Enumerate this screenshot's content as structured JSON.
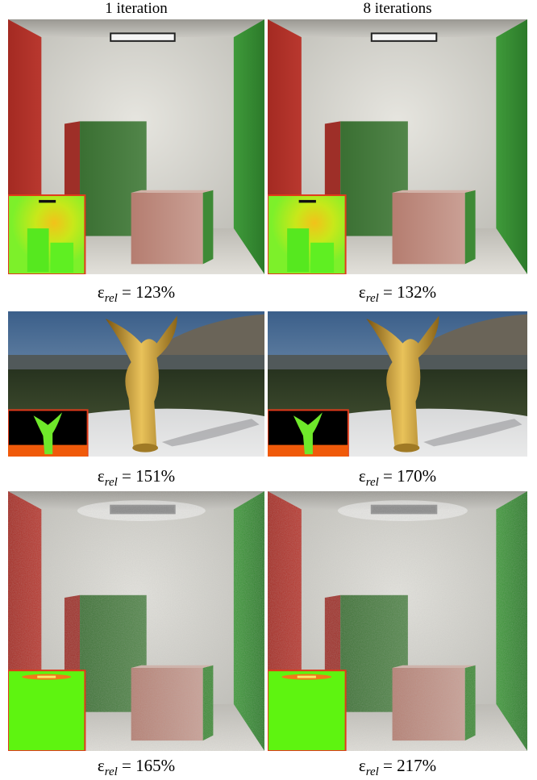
{
  "columns": [
    {
      "label": "1 iteration"
    },
    {
      "label": "8 iterations"
    }
  ],
  "rows": [
    {
      "scene": "cornell-box",
      "noise": false,
      "inset": "heatmap",
      "cells": [
        {
          "error_symbol": "ε",
          "error_subscript": "rel",
          "error_text": "= 123%",
          "error_value": 123
        },
        {
          "error_symbol": "ε",
          "error_subscript": "rel",
          "error_text": "= 132%",
          "error_value": 132
        }
      ]
    },
    {
      "scene": "angel-statue",
      "noise": false,
      "inset": "angel",
      "cells": [
        {
          "error_symbol": "ε",
          "error_subscript": "rel",
          "error_text": "= 151%",
          "error_value": 151
        },
        {
          "error_symbol": "ε",
          "error_subscript": "rel",
          "error_text": "= 170%",
          "error_value": 170
        }
      ]
    },
    {
      "scene": "cornell-box",
      "noise": true,
      "inset": "flat",
      "cells": [
        {
          "error_symbol": "ε",
          "error_subscript": "rel",
          "error_text": "= 165%",
          "error_value": 165
        },
        {
          "error_symbol": "ε",
          "error_subscript": "rel",
          "error_text": "= 217%",
          "error_value": 217
        }
      ]
    }
  ],
  "colors": {
    "wall_red": "#b9382f",
    "wall_green": "#3f9a3a",
    "wall_back": "#d9d8d2",
    "floor": "#cfcdc6",
    "inset_border": "#e03a1a"
  }
}
